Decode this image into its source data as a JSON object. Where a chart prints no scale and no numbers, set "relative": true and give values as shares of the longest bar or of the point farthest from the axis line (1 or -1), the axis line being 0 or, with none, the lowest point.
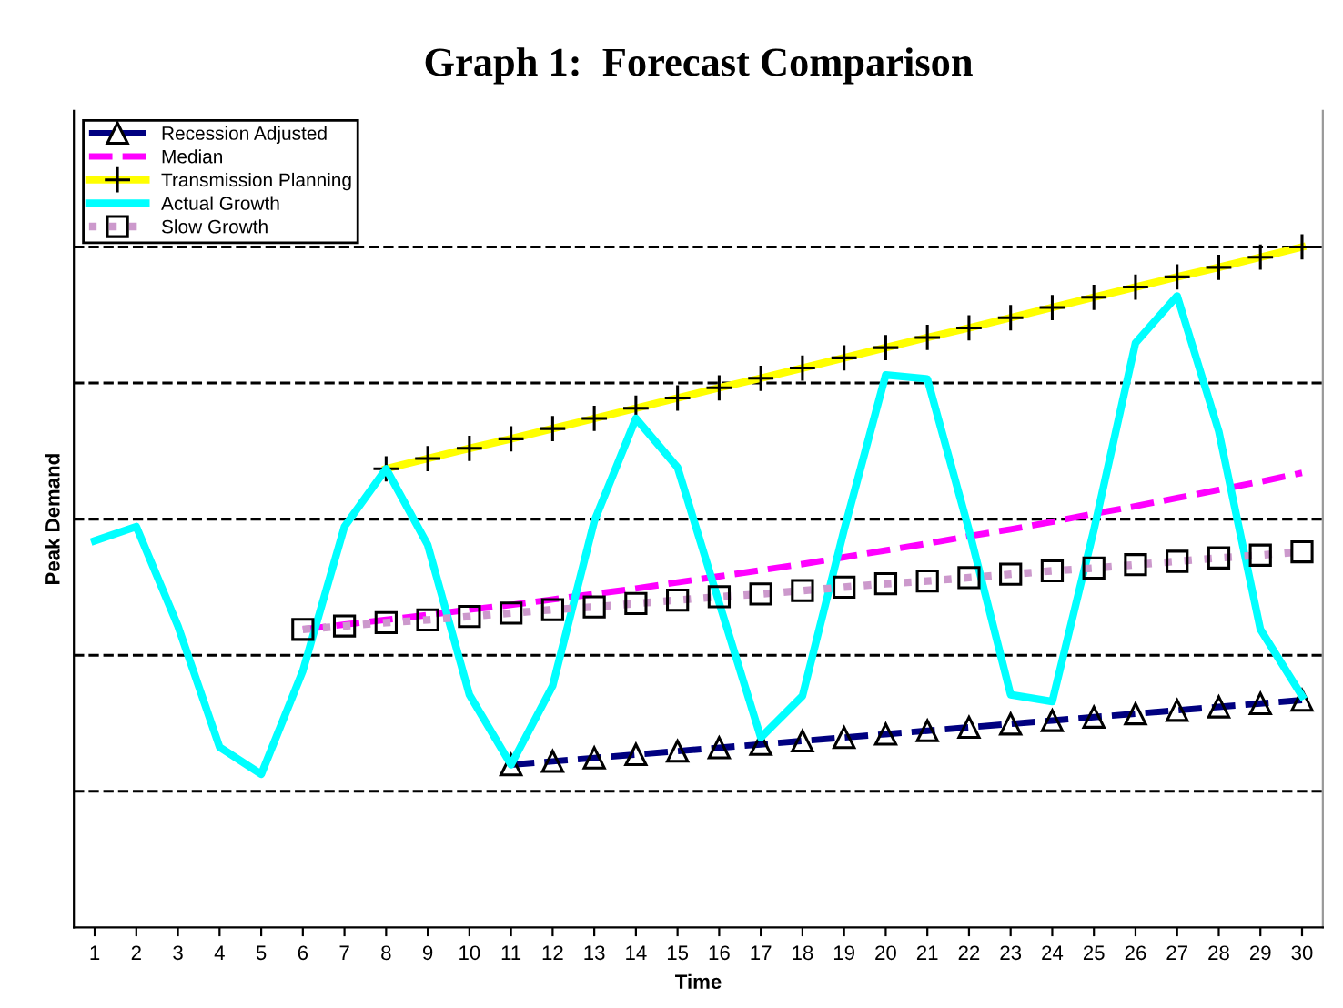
{
  "chart_data": {
    "type": "line",
    "title": "Graph 1:  Forecast Comparison",
    "xlabel": "Time",
    "ylabel": "Peak Demand",
    "relative": true,
    "categories": [
      "1",
      "2",
      "3",
      "4",
      "5",
      "6",
      "7",
      "8",
      "9",
      "10",
      "11",
      "12",
      "13",
      "14",
      "15",
      "16",
      "17",
      "18",
      "19",
      "20",
      "21",
      "22",
      "23",
      "24",
      "25",
      "26",
      "27",
      "28",
      "29",
      "30"
    ],
    "legend": "top left",
    "ref_lines": [
      {
        "axis": "y",
        "value": 0.2,
        "color": "#000000",
        "line_style": "dashed"
      },
      {
        "axis": "y",
        "value": 0.4,
        "color": "#000000",
        "line_style": "dashed"
      },
      {
        "axis": "y",
        "value": 0.6,
        "color": "#000000",
        "line_style": "dashed"
      },
      {
        "axis": "y",
        "value": 0.8,
        "color": "#000000",
        "line_style": "dashed"
      },
      {
        "axis": "y",
        "value": 1.0,
        "color": "#000000",
        "line_style": "dashed"
      }
    ],
    "series": [
      {
        "name": "Recession Adjusted",
        "color": "#000080",
        "marker": "triangle",
        "line_style": "dashed",
        "values": [
          null,
          null,
          null,
          null,
          null,
          null,
          null,
          null,
          null,
          null,
          0.239,
          0.244,
          0.249,
          0.254,
          0.259,
          0.264,
          0.269,
          0.274,
          0.279,
          0.284,
          0.289,
          0.294,
          0.299,
          0.304,
          0.309,
          0.314,
          0.319,
          0.324,
          0.329,
          0.334
        ]
      },
      {
        "name": "Median",
        "color": "#ff00ff",
        "marker": "none",
        "line_style": "dashed",
        "values": [
          null,
          null,
          null,
          null,
          null,
          0.438,
          0.445,
          0.452,
          0.459,
          0.467,
          0.474,
          0.482,
          0.49,
          0.498,
          0.507,
          0.516,
          0.525,
          0.534,
          0.544,
          0.554,
          0.564,
          0.575,
          0.585,
          0.596,
          0.608,
          0.619,
          0.631,
          0.643,
          0.655,
          0.668
        ]
      },
      {
        "name": "Transmission Planning",
        "color": "#ffff00",
        "marker": "cross",
        "line_style": "solid",
        "values": [
          null,
          null,
          null,
          null,
          null,
          null,
          null,
          0.674,
          0.689,
          0.704,
          0.718,
          0.733,
          0.748,
          0.763,
          0.778,
          0.793,
          0.807,
          0.822,
          0.837,
          0.852,
          0.867,
          0.881,
          0.896,
          0.911,
          0.926,
          0.941,
          0.956,
          0.97,
          0.985,
          1.0
        ]
      },
      {
        "name": "Actual Growth",
        "color": "#00ffff",
        "marker": "none",
        "line_style": "solid",
        "values": [
          0.568,
          0.589,
          0.443,
          0.265,
          0.225,
          0.377,
          0.589,
          0.674,
          0.562,
          0.342,
          0.239,
          0.355,
          0.597,
          0.748,
          0.676,
          0.477,
          0.279,
          0.34,
          0.584,
          0.812,
          0.806,
          0.584,
          0.342,
          0.332,
          0.584,
          0.859,
          0.928,
          0.729,
          0.438,
          0.34
        ]
      },
      {
        "name": "Slow Growth",
        "color": "#cc99cc",
        "marker": "square",
        "line_style": "dotted",
        "values": [
          null,
          null,
          null,
          null,
          null,
          0.438,
          0.443,
          0.448,
          0.452,
          0.457,
          0.462,
          0.467,
          0.471,
          0.476,
          0.481,
          0.486,
          0.49,
          0.495,
          0.5,
          0.505,
          0.509,
          0.514,
          0.519,
          0.524,
          0.528,
          0.533,
          0.538,
          0.543,
          0.547,
          0.552
        ]
      }
    ]
  }
}
